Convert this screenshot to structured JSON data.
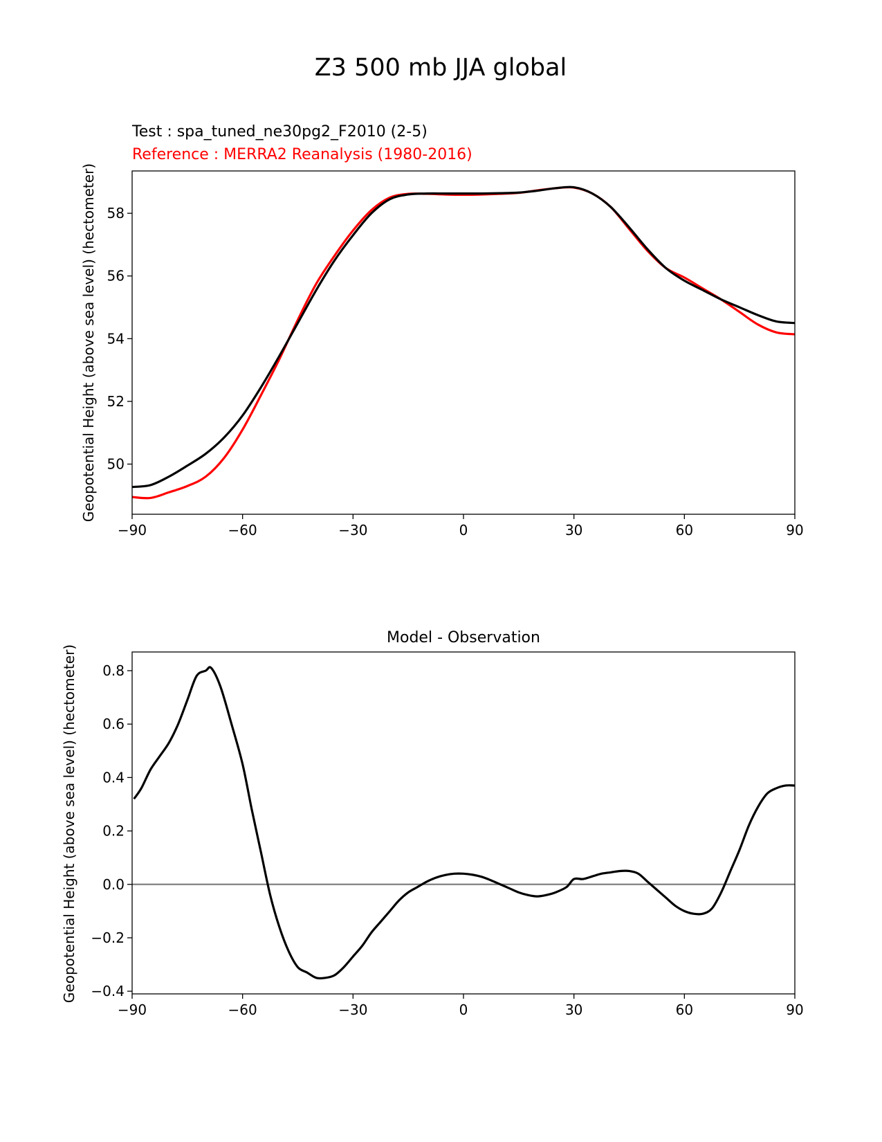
{
  "suptitle": "Z3 500 mb JJA global",
  "chart_data": [
    {
      "type": "line",
      "title_test": "Test : spa_tuned_ne30pg2_F2010 (2-5)",
      "title_ref": "Reference : MERRA2 Reanalysis (1980-2016)",
      "xlabel": "",
      "ylabel": "Geopotential Height (above sea level) (hectometer)",
      "xlim": [
        -90,
        90
      ],
      "ylim": [
        48.4,
        59.35
      ],
      "xticks": [
        -90,
        -60,
        -30,
        0,
        30,
        60,
        90
      ],
      "xtick_labels": [
        "−90",
        "−60",
        "−30",
        "0",
        "30",
        "60",
        "90"
      ],
      "yticks": [
        50,
        52,
        54,
        56,
        58
      ],
      "ytick_labels": [
        "50",
        "52",
        "54",
        "56",
        "58"
      ],
      "colors": {
        "test": "#000000",
        "reference": "#ff0000"
      },
      "x": [
        -90,
        -85,
        -80,
        -75,
        -70,
        -65,
        -60,
        -55,
        -50,
        -45,
        -40,
        -35,
        -30,
        -25,
        -20,
        -15,
        -10,
        -5,
        0,
        5,
        10,
        15,
        20,
        25,
        30,
        35,
        40,
        45,
        50,
        55,
        60,
        65,
        70,
        75,
        80,
        85,
        90
      ],
      "series": [
        {
          "key": "test",
          "values": [
            49.27,
            49.33,
            49.6,
            49.95,
            50.33,
            50.85,
            51.55,
            52.45,
            53.45,
            54.5,
            55.55,
            56.5,
            57.3,
            58.0,
            58.45,
            58.6,
            58.63,
            58.63,
            58.63,
            58.63,
            58.64,
            58.66,
            58.72,
            58.8,
            58.83,
            58.63,
            58.2,
            57.55,
            56.85,
            56.25,
            55.85,
            55.55,
            55.25,
            55.0,
            54.75,
            54.55,
            54.5
          ]
        },
        {
          "key": "reference",
          "values": [
            48.95,
            48.92,
            49.1,
            49.3,
            49.6,
            50.2,
            51.1,
            52.2,
            53.35,
            54.6,
            55.75,
            56.65,
            57.45,
            58.1,
            58.5,
            58.62,
            58.62,
            58.6,
            58.59,
            58.6,
            58.62,
            58.65,
            58.73,
            58.8,
            58.82,
            58.63,
            58.2,
            57.5,
            56.8,
            56.25,
            55.95,
            55.6,
            55.25,
            54.85,
            54.45,
            54.2,
            54.14
          ]
        }
      ]
    },
    {
      "type": "line",
      "title": "Model - Observation",
      "xlabel": "",
      "ylabel": "Geopotential Height (above sea level) (hectometer)",
      "xlim": [
        -90,
        90
      ],
      "ylim": [
        -0.41,
        0.87
      ],
      "xticks": [
        -90,
        -60,
        -30,
        0,
        30,
        60,
        90
      ],
      "xtick_labels": [
        "−90",
        "−60",
        "−30",
        "0",
        "30",
        "60",
        "90"
      ],
      "yticks": [
        -0.4,
        -0.2,
        0.0,
        0.2,
        0.4,
        0.6,
        0.8
      ],
      "ytick_labels": [
        "−0.4",
        "−0.2",
        "0.0",
        "0.2",
        "0.4",
        "0.6",
        "0.8"
      ],
      "zero_line": 0,
      "colors": {
        "line": "#000000",
        "zero_line": "#808080"
      },
      "x": [
        -89.5,
        -87.5,
        -85,
        -82.5,
        -80,
        -77.5,
        -75,
        -72.5,
        -70,
        -68.5,
        -66,
        -63,
        -60,
        -57.5,
        -55,
        -52.5,
        -50,
        -47.5,
        -45,
        -42.5,
        -40,
        -37.5,
        -35,
        -32.5,
        -30,
        -27.5,
        -25,
        -22.5,
        -20,
        -17.5,
        -15,
        -12.5,
        -10,
        -7.5,
        -5,
        -2.5,
        0,
        2.5,
        5,
        7.5,
        10,
        12.5,
        15,
        17.5,
        20,
        22.5,
        25,
        28,
        30,
        32.5,
        35,
        37.5,
        40,
        42.5,
        45,
        47.5,
        50,
        52.5,
        55,
        57.5,
        60,
        62.5,
        65,
        67.5,
        70,
        72.5,
        75,
        77.5,
        80,
        82.5,
        85,
        87.5,
        90
      ],
      "series": [
        {
          "name": "",
          "values": [
            0.32,
            0.36,
            0.43,
            0.48,
            0.53,
            0.6,
            0.69,
            0.78,
            0.8,
            0.81,
            0.74,
            0.6,
            0.45,
            0.28,
            0.12,
            -0.04,
            -0.16,
            -0.25,
            -0.31,
            -0.33,
            -0.35,
            -0.35,
            -0.34,
            -0.31,
            -0.27,
            -0.23,
            -0.18,
            -0.14,
            -0.1,
            -0.06,
            -0.03,
            -0.01,
            0.01,
            0.025,
            0.035,
            0.04,
            0.04,
            0.036,
            0.028,
            0.015,
            0.0,
            -0.015,
            -0.03,
            -0.04,
            -0.045,
            -0.04,
            -0.03,
            -0.01,
            0.02,
            0.02,
            0.03,
            0.04,
            0.045,
            0.05,
            0.05,
            0.04,
            0.01,
            -0.02,
            -0.05,
            -0.08,
            -0.1,
            -0.11,
            -0.11,
            -0.09,
            -0.03,
            0.05,
            0.13,
            0.22,
            0.29,
            0.34,
            0.36,
            0.37,
            0.37
          ]
        }
      ]
    }
  ]
}
